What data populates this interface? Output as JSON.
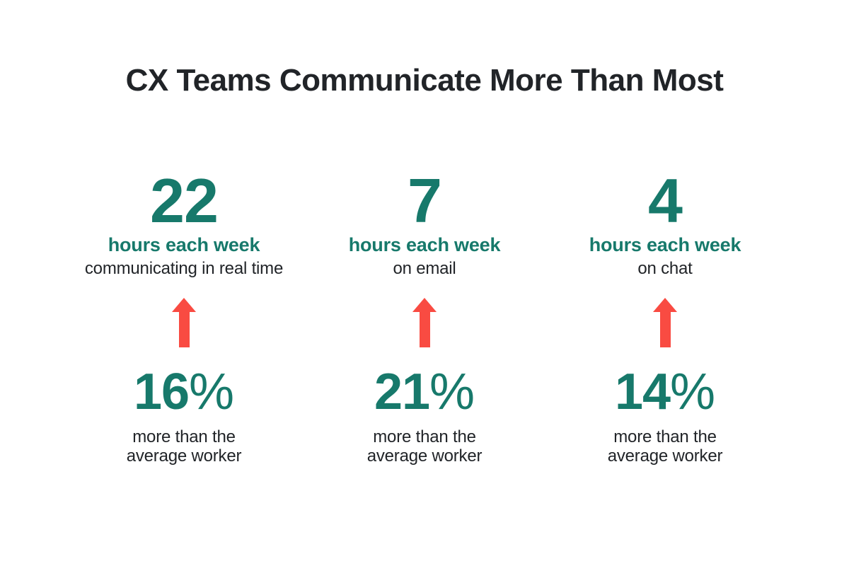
{
  "title": "CX Teams Communicate More Than Most",
  "colors": {
    "teal": "#17796B",
    "red": "#F94B42",
    "dark": "#212428",
    "background": "#FFFFFF"
  },
  "stats": [
    {
      "value": "22",
      "unit": "hours each week",
      "context": "communicating in real time",
      "percent_value": "16",
      "percent_sign": "%",
      "comparison": "more than the\naverage worker"
    },
    {
      "value": "7",
      "unit": "hours each week",
      "context": "on email",
      "percent_value": "21",
      "percent_sign": "%",
      "comparison": "more than the\naverage worker"
    },
    {
      "value": "4",
      "unit": "hours each week",
      "context": "on chat",
      "percent_value": "14",
      "percent_sign": "%",
      "comparison": "more than the\naverage worker"
    }
  ],
  "chart_data": {
    "type": "table",
    "title": "CX Teams Communicate More Than Most",
    "columns": [
      "activity",
      "hours_each_week",
      "percent_more_than_average_worker"
    ],
    "rows": [
      [
        "communicating in real time",
        22,
        16
      ],
      [
        "on email",
        7,
        21
      ],
      [
        "on chat",
        4,
        14
      ]
    ]
  }
}
